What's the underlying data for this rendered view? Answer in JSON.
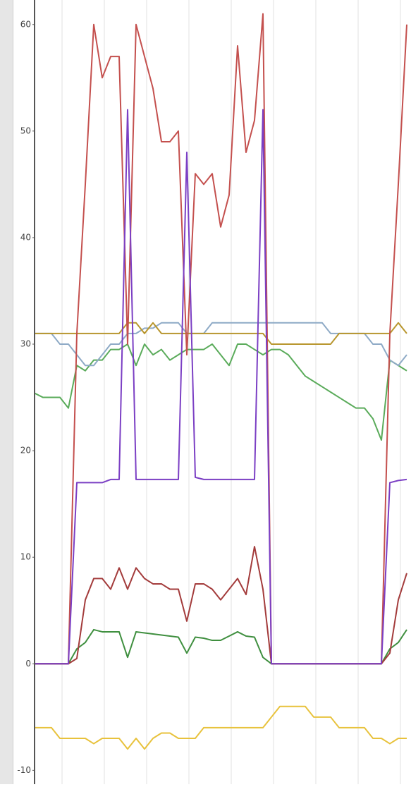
{
  "chart_data": {
    "type": "line",
    "x": [
      0,
      1,
      2,
      3,
      4,
      5,
      6,
      7,
      8,
      9,
      10,
      11,
      12,
      13,
      14,
      15,
      16,
      17,
      18,
      19,
      20,
      21,
      22,
      23,
      24,
      25,
      26,
      27,
      28,
      29,
      30,
      31,
      32,
      33,
      34,
      35,
      36,
      37,
      38,
      39,
      40,
      41,
      42,
      43,
      44
    ],
    "xlim": [
      0,
      44.5
    ],
    "xticks": [
      3.25,
      8.25,
      13.25,
      18.25,
      23.25,
      28.25,
      33.25,
      38.25,
      43.25
    ],
    "ylim": [
      -11.3,
      62.3
    ],
    "yticks": [
      -10,
      0,
      10,
      20,
      30,
      40,
      50,
      60
    ],
    "grid": true,
    "series": [
      {
        "color": "#5aab5a",
        "values": [
          25.4,
          25,
          25,
          25,
          24,
          28,
          27.5,
          28.5,
          28.5,
          29.5,
          29.5,
          30,
          28,
          30,
          29,
          29.5,
          28.5,
          29,
          29.5,
          29.5,
          29.5,
          30,
          29,
          28,
          30,
          30,
          29.5,
          29,
          29.5,
          29.5,
          29,
          28,
          27,
          26.5,
          26,
          25.5,
          25,
          24.5,
          24,
          24,
          23,
          21,
          28.5,
          28,
          27.5
        ]
      },
      {
        "color": "#8eaac6",
        "values": [
          31,
          31,
          31,
          30,
          30,
          29,
          28,
          28,
          29,
          30,
          30,
          31,
          31,
          31.5,
          31.5,
          32,
          32,
          32,
          31,
          31,
          31,
          32,
          32,
          32,
          32,
          32,
          32,
          32,
          32,
          32,
          32,
          32,
          32,
          32,
          32,
          31,
          31,
          31,
          31,
          31,
          30,
          30,
          28.5,
          28,
          29
        ]
      },
      {
        "color": "#b8962e",
        "values": [
          31,
          31,
          31,
          31,
          31,
          31,
          31,
          31,
          31,
          31,
          31,
          32,
          32,
          31,
          32,
          31,
          31,
          31,
          31,
          31,
          31,
          31,
          31,
          31,
          31,
          31,
          31,
          31,
          30,
          30,
          30,
          30,
          30,
          30,
          30,
          30,
          31,
          31,
          31,
          31,
          31,
          31,
          31,
          32,
          31
        ]
      },
      {
        "color": "#e8c23c",
        "values": [
          -6,
          -6,
          -6,
          -7,
          -7,
          -7,
          -7,
          -7.5,
          -7,
          -7,
          -7,
          -8,
          -7,
          -8,
          -7,
          -6.5,
          -6.5,
          -7,
          -7,
          -7,
          -6,
          -6,
          -6,
          -6,
          -6,
          -6,
          -6,
          -6,
          -5,
          -4,
          -4,
          -4,
          -4,
          -5,
          -5,
          -5,
          -6,
          -6,
          -6,
          -6,
          -7,
          -7,
          -7.5,
          -7,
          -7
        ]
      },
      {
        "color": "#3f8f3f",
        "values": [
          0,
          0,
          0,
          0,
          0,
          1.4,
          2,
          3.2,
          3,
          3,
          3,
          0.6,
          3,
          2.9,
          2.8,
          2.7,
          2.6,
          2.5,
          1,
          2.5,
          2.4,
          2.2,
          2.2,
          2.6,
          3,
          2.6,
          2.5,
          0.6,
          0,
          0,
          0,
          0,
          0,
          0,
          0,
          0,
          0,
          0,
          0,
          0,
          0,
          0,
          1.4,
          2,
          3.2
        ]
      },
      {
        "color": "#a33b3b",
        "values": [
          0,
          0,
          0,
          0,
          0,
          0.5,
          6,
          8,
          8,
          7,
          9,
          7,
          9,
          8,
          7.5,
          7.5,
          7,
          7,
          4,
          7.5,
          7.5,
          7,
          6,
          7,
          8,
          6.5,
          11,
          7,
          0,
          0,
          0,
          0,
          0,
          0,
          0,
          0,
          0,
          0,
          0,
          0,
          0,
          0,
          1,
          6,
          8.5
        ]
      },
      {
        "color": "#c4504e",
        "values": [
          0,
          0,
          0,
          0,
          0,
          31,
          45,
          60,
          55,
          57,
          57,
          30,
          60,
          57,
          54,
          49,
          49,
          50,
          29,
          46,
          45,
          46,
          41,
          44,
          58,
          48,
          51,
          61,
          0,
          0,
          0,
          0,
          0,
          0,
          0,
          0,
          0,
          0,
          0,
          0,
          0,
          0,
          31,
          45,
          60
        ]
      },
      {
        "color": "#7b3fc4",
        "values": [
          0,
          0,
          0,
          0,
          0,
          17,
          17,
          17,
          17,
          17.3,
          17.3,
          52,
          17.3,
          17.3,
          17.3,
          17.3,
          17.3,
          17.3,
          48,
          17.5,
          17.3,
          17.3,
          17.3,
          17.3,
          17.3,
          17.3,
          17.3,
          52,
          0,
          0,
          0,
          0,
          0,
          0,
          0,
          0,
          0,
          0,
          0,
          0,
          0,
          0,
          17,
          17.2,
          17.3
        ]
      }
    ]
  }
}
